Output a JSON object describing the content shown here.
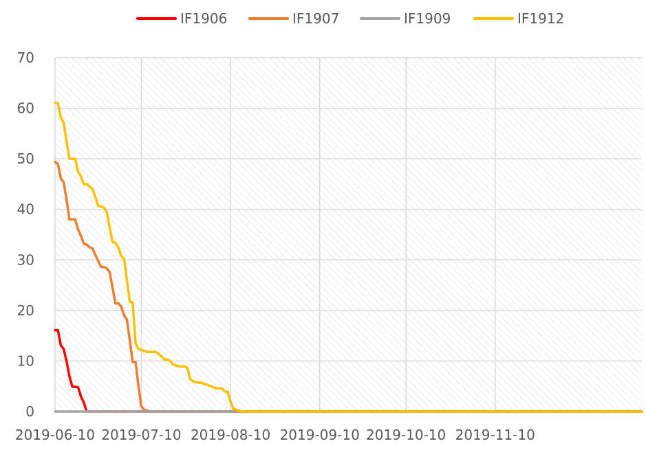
{
  "chart_data": {
    "type": "line",
    "title": "",
    "xlabel": "",
    "ylabel": "",
    "x_axis": {
      "type": "date",
      "range": [
        "2019-06-10",
        "2019-12-31"
      ],
      "tick_labels": [
        "2019-06-10",
        "2019-07-10",
        "2019-08-10",
        "2019-09-10",
        "2019-10-10",
        "2019-11-10"
      ]
    },
    "y_axis": {
      "range": [
        0,
        70
      ],
      "tick_labels": [
        "0",
        "10",
        "20",
        "30",
        "40",
        "50",
        "60",
        "70"
      ]
    },
    "grid": true,
    "legend_position": "top-center",
    "series": [
      {
        "name": "IF1906",
        "color": "#FF0000",
        "points": [
          [
            "2019-06-10",
            16.1
          ],
          [
            "2019-06-11",
            16.1
          ],
          [
            "2019-06-12",
            13.1
          ],
          [
            "2019-06-13",
            12.4
          ],
          [
            "2019-06-14",
            10.0
          ],
          [
            "2019-06-15",
            7.0
          ],
          [
            "2019-06-16",
            4.9
          ],
          [
            "2019-06-17",
            4.9
          ],
          [
            "2019-06-18",
            4.8
          ],
          [
            "2019-06-19",
            3.0
          ],
          [
            "2019-06-20",
            1.8
          ],
          [
            "2019-06-21",
            0.0
          ],
          [
            "2019-06-24",
            0.0
          ],
          [
            "2019-12-31",
            0.0
          ]
        ]
      },
      {
        "name": "IF1907",
        "color": "#ED7D31",
        "points": [
          [
            "2019-06-10",
            49.4
          ],
          [
            "2019-06-11",
            49.0
          ],
          [
            "2019-06-12",
            46.1
          ],
          [
            "2019-06-13",
            45.4
          ],
          [
            "2019-06-14",
            42.0
          ],
          [
            "2019-06-15",
            38.0
          ],
          [
            "2019-06-17",
            38.0
          ],
          [
            "2019-06-18",
            36.0
          ],
          [
            "2019-06-19",
            34.8
          ],
          [
            "2019-06-20",
            33.2
          ],
          [
            "2019-06-21",
            33.0
          ],
          [
            "2019-06-22",
            32.5
          ],
          [
            "2019-06-23",
            32.3
          ],
          [
            "2019-06-24",
            31.0
          ],
          [
            "2019-06-25",
            29.8
          ],
          [
            "2019-06-26",
            28.6
          ],
          [
            "2019-06-27",
            28.6
          ],
          [
            "2019-06-28",
            28.3
          ],
          [
            "2019-06-29",
            27.6
          ],
          [
            "2019-06-30",
            24.5
          ],
          [
            "2019-07-01",
            21.4
          ],
          [
            "2019-07-02",
            21.4
          ],
          [
            "2019-07-03",
            20.8
          ],
          [
            "2019-07-04",
            19.0
          ],
          [
            "2019-07-05",
            18.2
          ],
          [
            "2019-07-06",
            14.0
          ],
          [
            "2019-07-07",
            9.8
          ],
          [
            "2019-07-08",
            9.8
          ],
          [
            "2019-07-09",
            5.0
          ],
          [
            "2019-07-10",
            1.0
          ],
          [
            "2019-07-11",
            0.4
          ],
          [
            "2019-07-12",
            0.2
          ],
          [
            "2019-07-13",
            0.0
          ],
          [
            "2019-07-15",
            0.0
          ],
          [
            "2019-12-31",
            0.0
          ]
        ]
      },
      {
        "name": "IF1909",
        "color": "#A5A5A5",
        "points": [
          [
            "2019-06-10",
            0.0
          ],
          [
            "2019-12-31",
            0.0
          ]
        ]
      },
      {
        "name": "IF1912",
        "color": "#FFC000",
        "points": [
          [
            "2019-06-10",
            61.1
          ],
          [
            "2019-06-11",
            61.0
          ],
          [
            "2019-06-12",
            58.1
          ],
          [
            "2019-06-13",
            57.2
          ],
          [
            "2019-06-14",
            53.5
          ],
          [
            "2019-06-15",
            50.0
          ],
          [
            "2019-06-17",
            50.0
          ],
          [
            "2019-06-18",
            47.5
          ],
          [
            "2019-06-19",
            46.5
          ],
          [
            "2019-06-20",
            45.0
          ],
          [
            "2019-06-21",
            45.0
          ],
          [
            "2019-06-22",
            44.5
          ],
          [
            "2019-06-23",
            44.0
          ],
          [
            "2019-06-24",
            42.5
          ],
          [
            "2019-06-25",
            40.7
          ],
          [
            "2019-06-26",
            40.6
          ],
          [
            "2019-06-27",
            40.3
          ],
          [
            "2019-06-28",
            39.5
          ],
          [
            "2019-06-29",
            36.5
          ],
          [
            "2019-06-30",
            33.5
          ],
          [
            "2019-07-01",
            33.4
          ],
          [
            "2019-07-02",
            32.5
          ],
          [
            "2019-07-03",
            30.8
          ],
          [
            "2019-07-04",
            30.2
          ],
          [
            "2019-07-05",
            26.0
          ],
          [
            "2019-07-06",
            21.7
          ],
          [
            "2019-07-07",
            21.6
          ],
          [
            "2019-07-08",
            13.5
          ],
          [
            "2019-07-09",
            12.4
          ],
          [
            "2019-07-10",
            12.2
          ],
          [
            "2019-07-12",
            11.8
          ],
          [
            "2019-07-15",
            11.8
          ],
          [
            "2019-07-16",
            11.4
          ],
          [
            "2019-07-17",
            10.9
          ],
          [
            "2019-07-18",
            10.3
          ],
          [
            "2019-07-19",
            10.3
          ],
          [
            "2019-07-20",
            10.0
          ],
          [
            "2019-07-21",
            9.3
          ],
          [
            "2019-07-22",
            9.1
          ],
          [
            "2019-07-23",
            9.0
          ],
          [
            "2019-07-24",
            8.9
          ],
          [
            "2019-07-25",
            8.9
          ],
          [
            "2019-07-26",
            8.7
          ],
          [
            "2019-07-27",
            6.4
          ],
          [
            "2019-07-28",
            6.0
          ],
          [
            "2019-07-29",
            5.8
          ],
          [
            "2019-07-30",
            5.7
          ],
          [
            "2019-07-31",
            5.7
          ],
          [
            "2019-08-01",
            5.4
          ],
          [
            "2019-08-02",
            5.3
          ],
          [
            "2019-08-03",
            5.0
          ],
          [
            "2019-08-04",
            4.8
          ],
          [
            "2019-08-05",
            4.6
          ],
          [
            "2019-08-06",
            4.6
          ],
          [
            "2019-08-07",
            4.6
          ],
          [
            "2019-08-08",
            4.0
          ],
          [
            "2019-08-09",
            3.9
          ],
          [
            "2019-08-10",
            2.0
          ],
          [
            "2019-08-11",
            0.5
          ],
          [
            "2019-08-12",
            0.4
          ],
          [
            "2019-08-13",
            0.1
          ],
          [
            "2019-08-14",
            0.0
          ],
          [
            "2019-08-16",
            0.0
          ],
          [
            "2019-12-31",
            0.0
          ]
        ]
      }
    ]
  }
}
